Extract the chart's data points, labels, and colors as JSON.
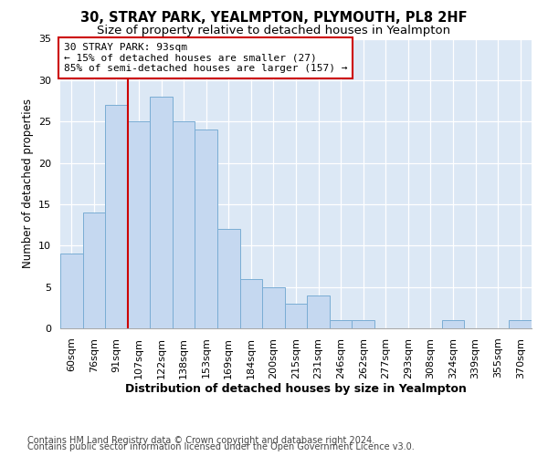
{
  "title_line1": "30, STRAY PARK, YEALMPTON, PLYMOUTH, PL8 2HF",
  "title_line2": "Size of property relative to detached houses in Yealmpton",
  "xlabel": "Distribution of detached houses by size in Yealmpton",
  "ylabel": "Number of detached properties",
  "bin_labels": [
    "60sqm",
    "76sqm",
    "91sqm",
    "107sqm",
    "122sqm",
    "138sqm",
    "153sqm",
    "169sqm",
    "184sqm",
    "200sqm",
    "215sqm",
    "231sqm",
    "246sqm",
    "262sqm",
    "277sqm",
    "293sqm",
    "308sqm",
    "324sqm",
    "339sqm",
    "355sqm",
    "370sqm"
  ],
  "bar_values": [
    9,
    14,
    27,
    25,
    28,
    25,
    24,
    12,
    6,
    5,
    3,
    4,
    1,
    1,
    0,
    0,
    0,
    1,
    0,
    0,
    1
  ],
  "bar_color": "#c5d8f0",
  "bar_edge_color": "#7aadd4",
  "background_color": "#dce8f5",
  "grid_color": "#ffffff",
  "vline_x_index": 2,
  "vline_color": "#cc0000",
  "annotation_text": "30 STRAY PARK: 93sqm\n← 15% of detached houses are smaller (27)\n85% of semi-detached houses are larger (157) →",
  "annotation_box_color": "#ffffff",
  "annotation_border_color": "#cc0000",
  "footer_line1": "Contains HM Land Registry data © Crown copyright and database right 2024.",
  "footer_line2": "Contains public sector information licensed under the Open Government Licence v3.0.",
  "ylim": [
    0,
    35
  ],
  "yticks": [
    0,
    5,
    10,
    15,
    20,
    25,
    30,
    35
  ],
  "title_fontsize": 10.5,
  "subtitle_fontsize": 9.5,
  "xlabel_fontsize": 9,
  "ylabel_fontsize": 8.5,
  "tick_fontsize": 8,
  "annot_fontsize": 8,
  "footer_fontsize": 7
}
